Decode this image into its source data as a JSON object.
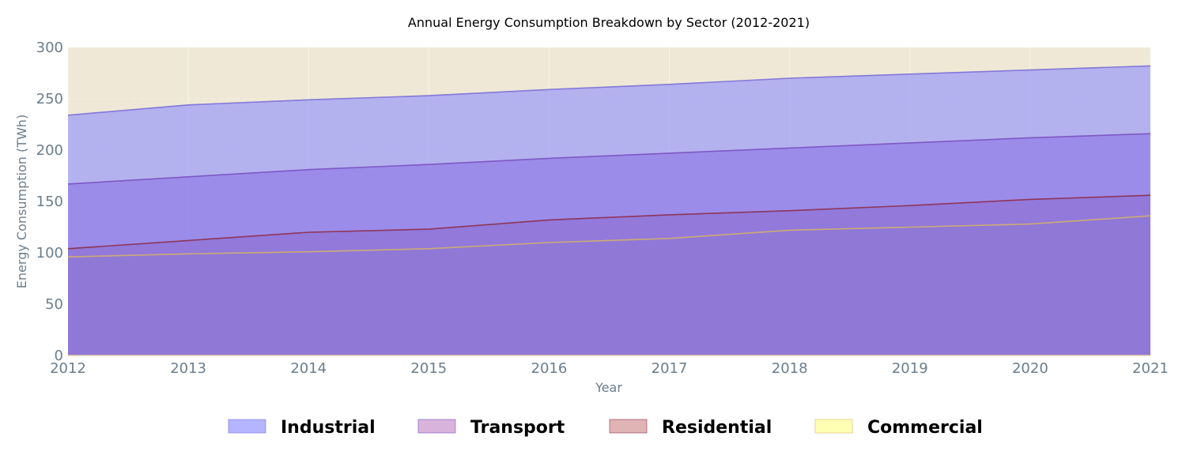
{
  "chart_data": {
    "type": "area",
    "stacked": false,
    "title": "Annual Energy Consumption Breakdown by Sector (2012-2021)",
    "xlabel": "Year",
    "ylabel": "Energy Consumption (TWh)",
    "x": [
      2012,
      2013,
      2014,
      2015,
      2016,
      2017,
      2018,
      2019,
      2020,
      2021
    ],
    "xlim": [
      2012,
      2021
    ],
    "ylim": [
      0,
      300
    ],
    "xticks": [
      "2012",
      "2013",
      "2014",
      "2015",
      "2016",
      "2017",
      "2018",
      "2019",
      "2020",
      "2021"
    ],
    "yticks": [
      "0",
      "50",
      "100",
      "150",
      "200",
      "250",
      "300"
    ],
    "grid": true,
    "legend_position": "bottom-center",
    "plot_background": "#efe8d6",
    "series": [
      {
        "name": "Commercial",
        "values": [
          96,
          99,
          101,
          104,
          110,
          114,
          122,
          125,
          128,
          136
        ],
        "legend_color": "#ffffb3",
        "fill": "#a7dc6d",
        "fill_opacity": 0.5,
        "stroke": "#d4b06a"
      },
      {
        "name": "Residential",
        "values": [
          104,
          112,
          120,
          123,
          132,
          137,
          141,
          146,
          152,
          156
        ],
        "legend_color": "#e0b4b4",
        "fill": "#8c1c3c",
        "fill_opacity": 0.6,
        "stroke": "#8c2e4a"
      },
      {
        "name": "Transport",
        "values": [
          167,
          174,
          181,
          186,
          192,
          197,
          202,
          207,
          212,
          216
        ],
        "legend_color": "#d8b4dc",
        "fill": "#8c50c0",
        "fill_opacity": 0.6,
        "stroke": "#7a50c0"
      },
      {
        "name": "Industrial",
        "values": [
          234,
          244,
          249,
          253,
          259,
          264,
          270,
          274,
          278,
          282
        ],
        "legend_color": "#b4b4ff",
        "fill": "#8c8cff",
        "fill_opacity": 0.6,
        "stroke": "#7a70d8"
      }
    ],
    "legend_order": [
      "Industrial",
      "Transport",
      "Residential",
      "Commercial"
    ]
  }
}
